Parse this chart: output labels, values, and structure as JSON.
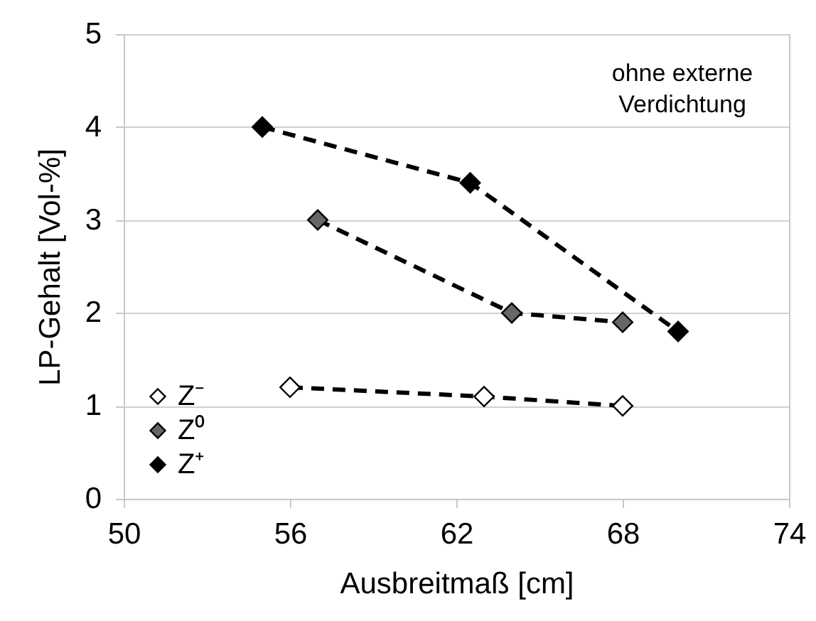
{
  "chart_data": {
    "type": "line",
    "xlabel": "Ausbreitmaß [cm]",
    "ylabel": "LP-Gehalt [Vol-%]",
    "annotations": [
      "ohne externe Verdichtung"
    ],
    "series": [
      {
        "name": "Z⁻",
        "color": "#ffffff",
        "x": [
          56,
          63,
          68
        ],
        "values": [
          1.2,
          1.1,
          1.0
        ]
      },
      {
        "name": "Z⁰",
        "color": "#666666",
        "x": [
          57,
          64,
          68
        ],
        "values": [
          3,
          2,
          1.9
        ]
      },
      {
        "name": "Z⁺",
        "color": "#000000",
        "x": [
          55,
          62.5,
          70
        ],
        "values": [
          4,
          3.4,
          1.8
        ]
      }
    ],
    "xlim": [
      50,
      74
    ],
    "xticks": [
      50,
      56,
      62,
      68,
      74
    ],
    "ylim": [
      0,
      5
    ],
    "yticks": [
      0,
      1,
      2,
      3,
      4,
      5
    ],
    "grid": "y",
    "legend": "bottom left",
    "marker": "diamond",
    "line_style": "dashed"
  }
}
